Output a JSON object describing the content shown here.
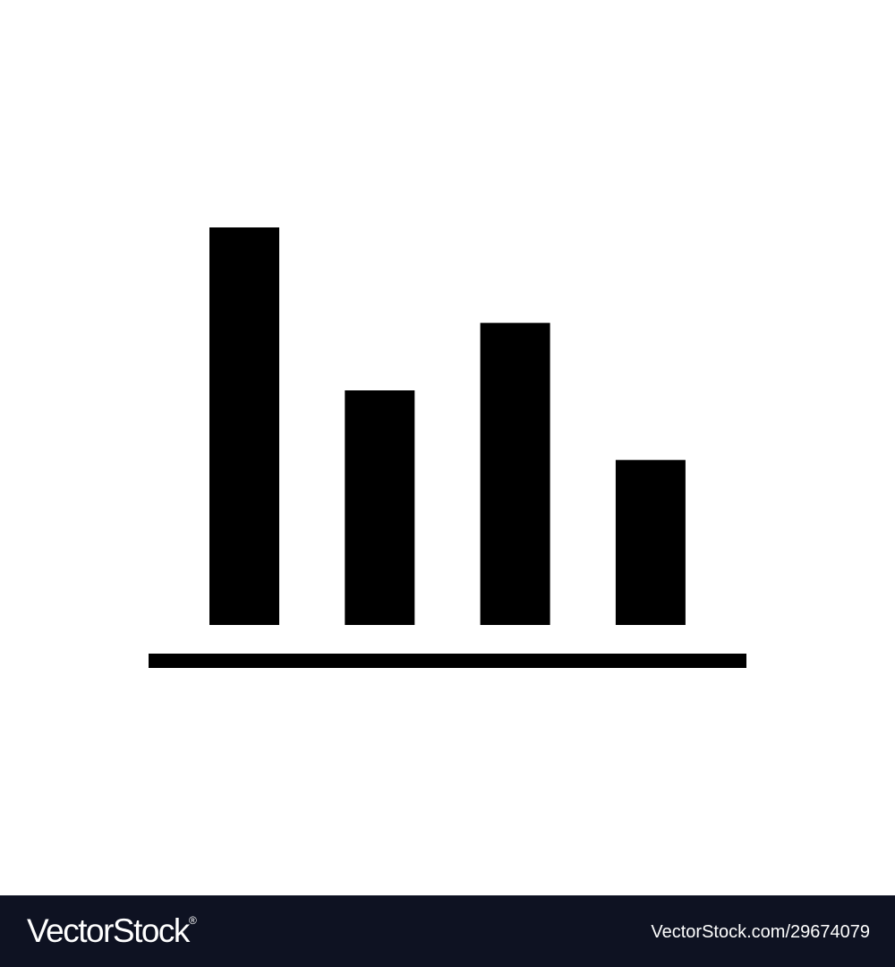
{
  "icon": {
    "name": "bar-chart-icon",
    "color": "#000000",
    "bars": [
      {
        "level": 1.0
      },
      {
        "level": 0.59
      },
      {
        "level": 0.76
      },
      {
        "level": 0.415
      }
    ]
  },
  "footer": {
    "brand": "VectorStock",
    "brand_mark": "®",
    "image_id": "VectorStock.com/29674079",
    "background": "#0e1222",
    "text_color": "#ffffff"
  }
}
